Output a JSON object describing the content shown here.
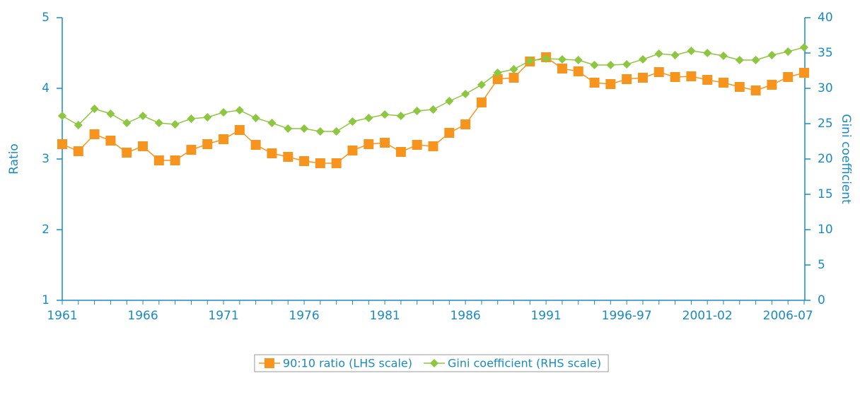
{
  "chart_data": {
    "type": "line",
    "y_label": "Ratio",
    "y2_label": "Gini coefficient",
    "categories": [
      "1961",
      null,
      null,
      null,
      null,
      "1966",
      null,
      null,
      null,
      null,
      "1971",
      null,
      null,
      null,
      null,
      "1976",
      null,
      null,
      null,
      null,
      "1981",
      null,
      null,
      null,
      null,
      "1986",
      null,
      null,
      null,
      null,
      "1991",
      null,
      null,
      null,
      null,
      "1996-97",
      null,
      null,
      null,
      null,
      "2001-02",
      null,
      null,
      null,
      null,
      "2006-07",
      null
    ],
    "ylim": [
      1,
      5
    ],
    "yticks": [
      1,
      2,
      3,
      4,
      5
    ],
    "y2lim": [
      0,
      40
    ],
    "y2ticks": [
      0,
      5,
      10,
      15,
      20,
      25,
      30,
      35,
      40
    ],
    "series": [
      {
        "name": "90:10 ratio (LHS scale)",
        "color": "#f7941d",
        "marker": "square",
        "values": [
          3.21,
          3.11,
          3.35,
          3.26,
          3.09,
          3.18,
          2.98,
          2.98,
          3.13,
          3.21,
          3.28,
          3.41,
          3.2,
          3.08,
          3.03,
          2.97,
          2.94,
          2.94,
          3.12,
          3.21,
          3.23,
          3.1,
          3.2,
          3.18,
          3.37,
          3.49,
          3.8,
          4.13,
          4.15,
          4.38,
          4.44,
          4.28,
          4.24,
          4.08,
          4.06,
          4.13,
          4.15,
          4.23,
          4.16,
          4.17,
          4.12,
          4.08,
          4.02,
          3.97,
          4.05,
          4.16,
          4.22
        ]
      },
      {
        "name": "Gini coefficient (RHS scale)",
        "color": "#8dc63f",
        "marker": "diamond",
        "axis": "y2",
        "values": [
          26.1,
          24.8,
          27.1,
          26.4,
          25.1,
          26.1,
          25.1,
          24.9,
          25.7,
          25.9,
          26.6,
          26.9,
          25.8,
          25.1,
          24.3,
          24.3,
          23.9,
          23.9,
          25.3,
          25.8,
          26.3,
          26.1,
          26.8,
          27.0,
          28.2,
          29.2,
          30.5,
          32.2,
          32.7,
          33.9,
          34.2,
          34.1,
          34.0,
          33.3,
          33.3,
          33.4,
          34.1,
          34.9,
          34.7,
          35.3,
          35.0,
          34.6,
          34.0,
          34.0,
          34.7,
          35.2,
          35.8
        ]
      }
    ]
  }
}
